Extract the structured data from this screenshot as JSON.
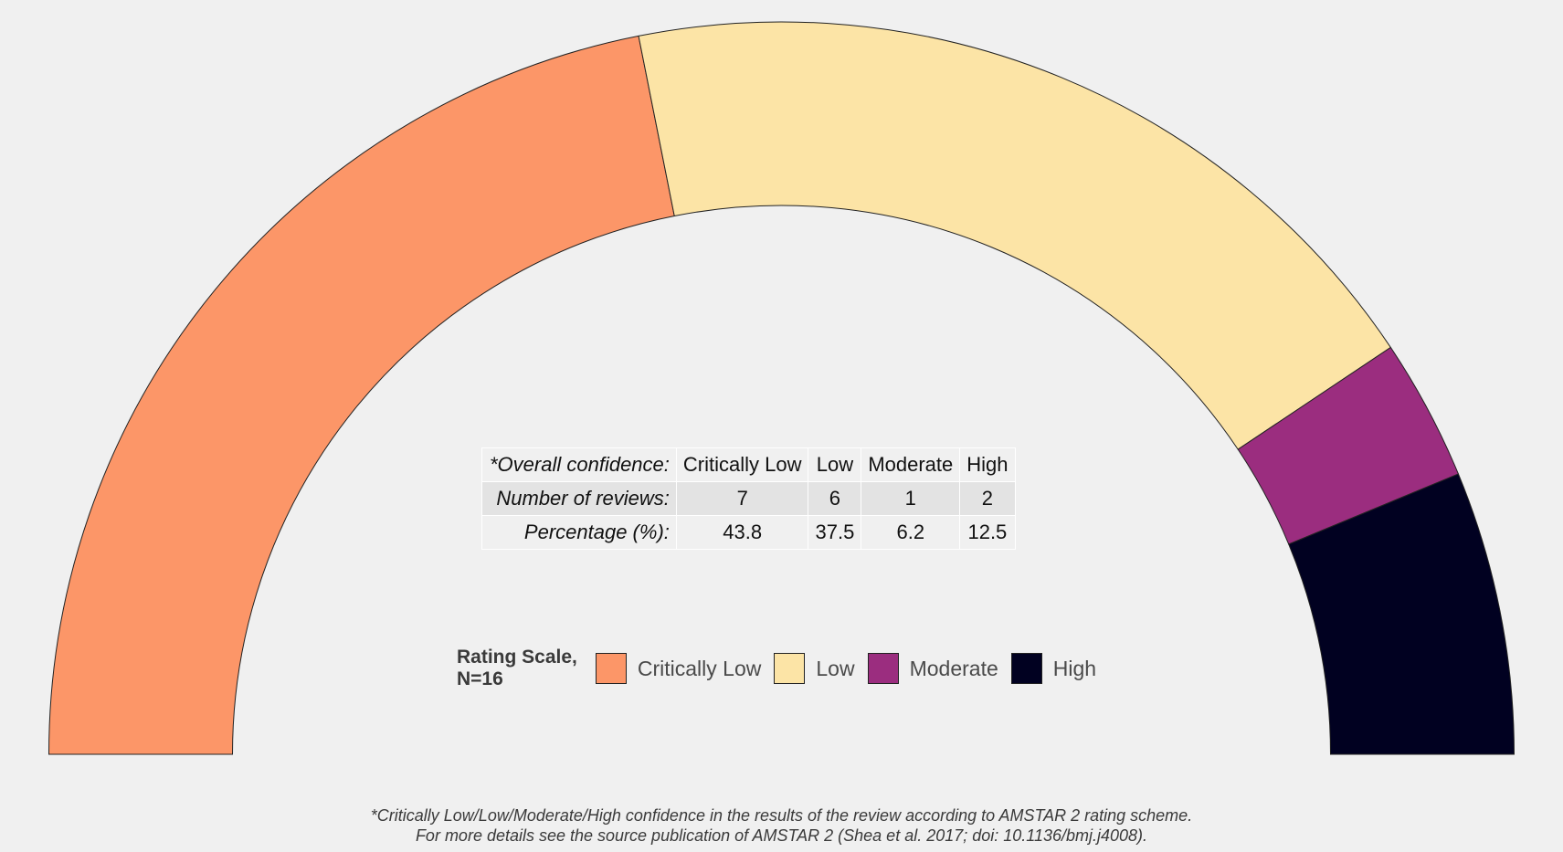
{
  "chart_data": {
    "type": "pie",
    "style": "half-donut",
    "categories": [
      "Critically Low",
      "Low",
      "Moderate",
      "High"
    ],
    "values": [
      7,
      6,
      1,
      2
    ],
    "colors": [
      "#FC9668",
      "#FCE4A6",
      "#9B2D7F",
      "#010121"
    ],
    "legend": {
      "title": "Rating Scale,\nN=16",
      "position": "bottom-center",
      "items": [
        {
          "label": "Critically Low",
          "color": "#FC9668"
        },
        {
          "label": "Low",
          "color": "#FCE4A6"
        },
        {
          "label": "Moderate",
          "color": "#9B2D7F"
        },
        {
          "label": "High",
          "color": "#010121"
        }
      ]
    },
    "table": {
      "row_labels": [
        "*Overall confidence:",
        "Number of reviews:",
        "Percentage (%):"
      ],
      "columns": [
        {
          "header": "Critically Low",
          "count": "7",
          "percent": "43.8"
        },
        {
          "header": "Low",
          "count": "6",
          "percent": "37.5"
        },
        {
          "header": "Moderate",
          "count": "1",
          "percent": "6.2"
        },
        {
          "header": "High",
          "count": "2",
          "percent": "12.5"
        }
      ]
    },
    "caption": [
      "*Critically Low/Low/Moderate/High confidence in the results of the review according to AMSTAR 2 rating scheme.",
      "For more details see the source publication of AMSTAR 2 (Shea et al. 2017; doi: 10.1136/bmj.j4008)."
    ]
  }
}
